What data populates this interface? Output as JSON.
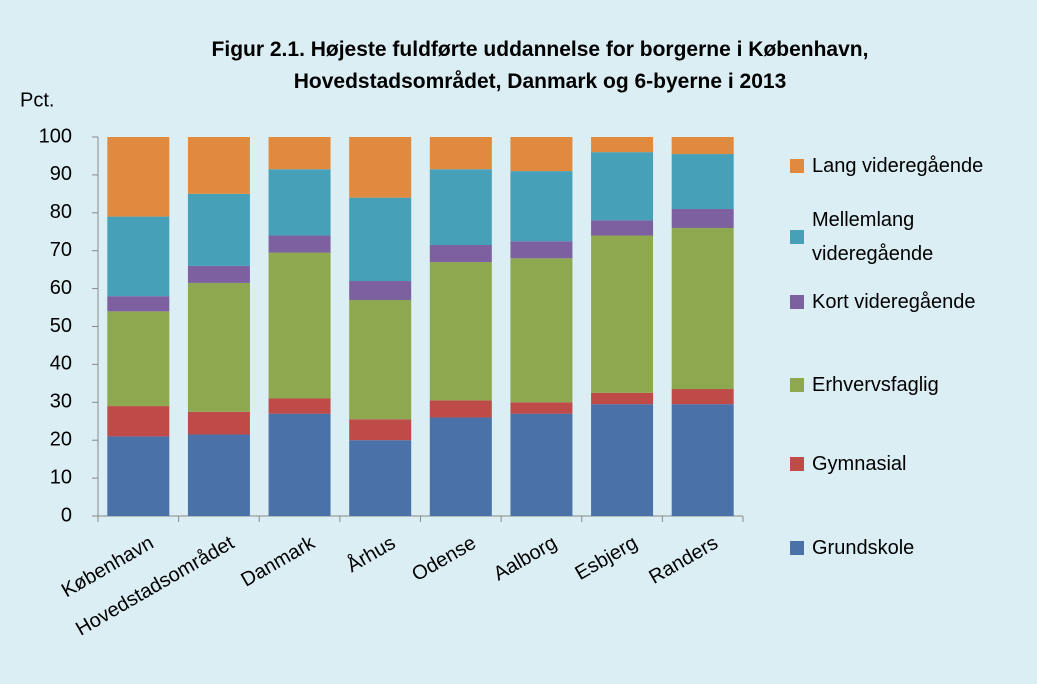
{
  "chart_data": {
    "type": "stacked_bar",
    "title": "Figur 2.1. Højeste fuldførte uddannelse for borgerne i København, Hovedstadsområdet, Danmark og 6-byerne i 2013",
    "ylabel": "Pct.",
    "categories": [
      "København",
      "Hovedstadsområdet",
      "Danmark",
      "Århus",
      "Odense",
      "Aalborg",
      "Esbjerg",
      "Randers"
    ],
    "series": [
      {
        "name": "Grundskole",
        "color": "#4a72a9",
        "values": [
          21,
          21.5,
          27,
          20,
          26,
          27,
          29.5,
          29.5
        ]
      },
      {
        "name": "Gymnasial",
        "color": "#be4b48",
        "values": [
          8,
          6,
          4,
          5.5,
          4.5,
          3,
          3,
          4
        ]
      },
      {
        "name": "Erhvervsfaglig",
        "color": "#8ea84f",
        "values": [
          25,
          34,
          38.5,
          31.5,
          36.5,
          38,
          41.5,
          42.5
        ]
      },
      {
        "name": "Kort videregående",
        "color": "#7d60a0",
        "values": [
          4,
          4.5,
          4.5,
          5,
          4.5,
          4.5,
          4,
          5
        ]
      },
      {
        "name": "Mellemlang videregående",
        "color": "#46a0b8",
        "values": [
          21,
          19,
          17.5,
          22,
          20,
          18.5,
          18,
          14.5
        ]
      },
      {
        "name": "Lang videregående",
        "color": "#e08a3f",
        "values": [
          21,
          15,
          8.5,
          16,
          8.5,
          9,
          4,
          4.5
        ]
      }
    ],
    "ylim": [
      0,
      100
    ],
    "yticks": [
      0,
      10,
      20,
      30,
      40,
      50,
      60,
      70,
      80,
      90,
      100
    ],
    "legend": "right"
  }
}
